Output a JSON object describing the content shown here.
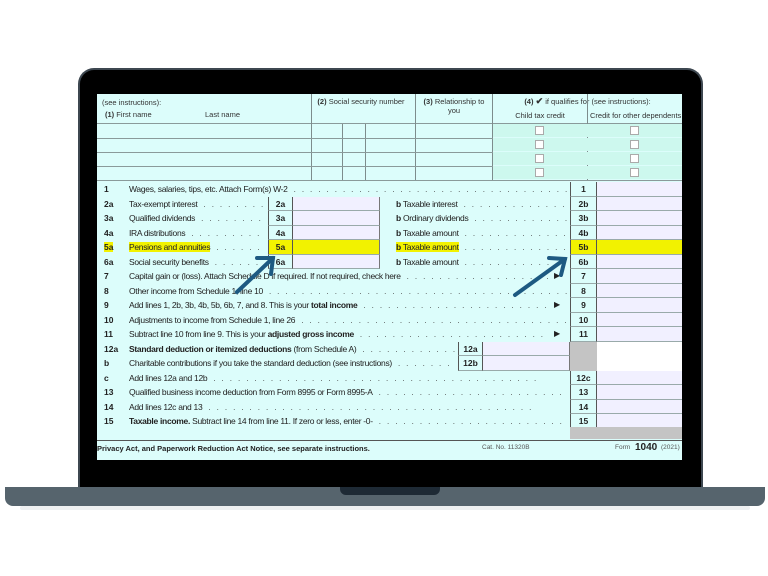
{
  "laptop": {
    "colors": {
      "frame": "#000000",
      "base": "#56646d",
      "notch": "#1e2a35"
    }
  },
  "form": {
    "colors": {
      "background": "#dcfdfb",
      "input": "#f1f0ff",
      "highlight": "#f2f200",
      "arrow": "#1d5a82"
    },
    "dependents_header": {
      "see_instructions": "(see instructions):",
      "col1_num": "(1)",
      "col1_first": "First name",
      "col1_last": "Last name",
      "col2_num": "(2)",
      "col2_label": "Social security number",
      "col3_num": "(3)",
      "col3_label": "Relationship to you",
      "col4_num": "(4)",
      "col4_check": "✔",
      "col4_label": "if qualifies for (see instructions):",
      "child_tax_credit": "Child tax credit",
      "credit_other": "Credit for other dependents"
    },
    "lines": [
      {
        "num": "1",
        "label": "Wages, salaries, tips, etc. Attach Form(s) W-2",
        "right": "1"
      },
      {
        "num": "2a",
        "label": "Tax-exempt interest",
        "mid": "2a",
        "b": "Taxable interest",
        "right": "2b"
      },
      {
        "num": "3a",
        "label": "Qualified dividends",
        "mid": "3a",
        "b": "Ordinary dividends",
        "right": "3b"
      },
      {
        "num": "4a",
        "label": "IRA distributions",
        "mid": "4a",
        "b": "Taxable amount",
        "right": "4b"
      },
      {
        "num": "5a",
        "label": "Pensions and annuities",
        "mid": "5a",
        "b": "Taxable amount",
        "right": "5b",
        "highlight": true
      },
      {
        "num": "6a",
        "label": "Social security benefits",
        "mid": "6a",
        "b": "Taxable amount",
        "right": "6b"
      },
      {
        "num": "7",
        "label": "Capital gain or (loss). Attach Schedule D if required. If not required, check here",
        "arrow": true,
        "right": "7"
      },
      {
        "num": "8",
        "label": "Other income from Schedule 1, line 10",
        "right": "8"
      },
      {
        "num": "9",
        "label": "Add lines 1, 2b, 3b, 4b, 5b, 6b, 7, and 8. This is your ",
        "bold": "total income",
        "arrow": true,
        "right": "9"
      },
      {
        "num": "10",
        "label": "Adjustments to income from Schedule 1, line 26",
        "right": "10"
      },
      {
        "num": "11",
        "label": "Subtract line 10 from line 9. This is your ",
        "bold": "adjusted gross income",
        "arrow": true,
        "right": "11"
      },
      {
        "num": "12a",
        "lead_bold": "Standard deduction or itemized deductions",
        "label": " (from Schedule A)",
        "box12": "12a",
        "gray": true
      },
      {
        "num": "b",
        "label": "Charitable contributions if you take the standard deduction (see instructions)",
        "box12": "12b",
        "gray": true
      },
      {
        "num": "c",
        "label": "Add lines 12a and 12b",
        "right": "12c"
      },
      {
        "num": "13",
        "label": "Qualified business income deduction from Form 8995 or Form 8995-A",
        "right": "13"
      },
      {
        "num": "14",
        "label": "Add lines 12c and 13",
        "right": "14"
      },
      {
        "num": "15",
        "lead_bold": "Taxable income.",
        "label": " Subtract line 14 from line 11. If zero or less, enter -0-",
        "right": "15"
      }
    ],
    "b_prefix": "b",
    "footer": {
      "notice": "Privacy Act, and Paperwork Reduction Act Notice, see separate instructions.",
      "cat": "Cat. No. 11320B",
      "form_prefix": "Form",
      "form_number": "1040",
      "year": "(2021)"
    }
  }
}
